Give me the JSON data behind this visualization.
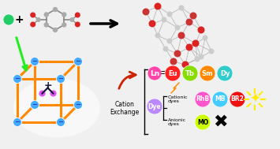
{
  "bg_color": "#f0f0f0",
  "ln_elements": [
    "Eu",
    "Tb",
    "Sm",
    "Dy"
  ],
  "ln_colors": [
    "#ff2222",
    "#88dd00",
    "#ff8800",
    "#33cccc"
  ],
  "ln_circle_color": "#ff44aa",
  "dye_label": "Dye",
  "dye_color": "#bb88ff",
  "cationic_dyes": [
    "RhB",
    "MB",
    "BR2"
  ],
  "cationic_colors": [
    "#ff55cc",
    "#44ccff",
    "#ee1111"
  ],
  "anionic_dyes": [
    "MO"
  ],
  "anionic_colors": [
    "#ccff00"
  ],
  "cube_color": "#ff8800",
  "cube_node_color": "#44aaff",
  "green_ion_color": "#22cc66",
  "arrow_color": "#cc2200",
  "cation_exchange_text": "Cation\nExchange",
  "cationic_label": "Cationic\ndyes",
  "anionic_label": "Anionic\ndyes"
}
